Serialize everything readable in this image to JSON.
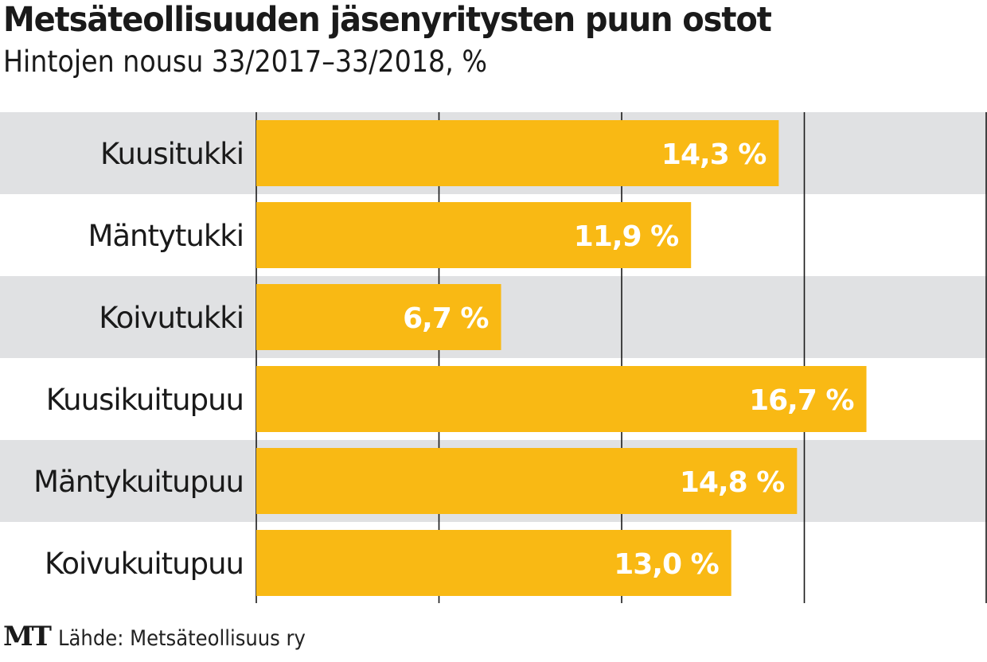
{
  "chart_data": {
    "type": "bar",
    "orientation": "horizontal",
    "title": "Metsäteollisuuden jäsenyritysten puun ostot",
    "subtitle": "Hintojen nousu 33/2017–33/2018, %",
    "categories": [
      "Kuusitukki",
      "Mäntytukki",
      "Koivutukki",
      "Kuusikuitupuu",
      "Mäntykuitupuu",
      "Koivukuitupuu"
    ],
    "values": [
      14.3,
      11.9,
      6.7,
      16.7,
      14.8,
      13.0
    ],
    "data_labels": [
      "14,3 %",
      "11,9 %",
      "6,7 %",
      "16,7 %",
      "14,8 %",
      "13,0 %"
    ],
    "xlabel": "",
    "ylabel": "",
    "xlim": [
      0,
      20
    ],
    "gridlines": [
      0,
      5,
      10,
      15,
      20
    ],
    "grid": true,
    "legend": "none",
    "colors": {
      "bar": "#F9B914",
      "band": "#E0E1E3",
      "grid": "#1a1a1a",
      "label": "#ffffff"
    }
  },
  "footer": {
    "logo": "MT",
    "source": "Lähde: Metsäteollisuus ry"
  }
}
